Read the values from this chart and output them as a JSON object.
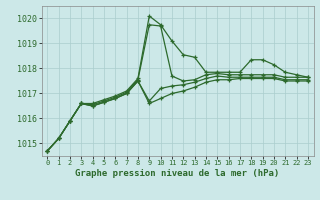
{
  "title": "Graphe pression niveau de la mer (hPa)",
  "xlabel_hours": [
    0,
    1,
    2,
    3,
    4,
    5,
    6,
    7,
    8,
    9,
    10,
    11,
    12,
    13,
    14,
    15,
    16,
    17,
    18,
    19,
    20,
    21,
    22,
    23
  ],
  "series": [
    [
      1014.7,
      1015.2,
      1015.9,
      1016.6,
      1016.6,
      1016.75,
      1016.9,
      1017.1,
      1017.6,
      1020.1,
      1019.75,
      1019.1,
      1018.55,
      1018.45,
      1017.85,
      1017.85,
      1017.85,
      1017.85,
      1018.35,
      1018.35,
      1018.15,
      1017.85,
      1017.75,
      1017.65
    ],
    [
      1014.7,
      1015.2,
      1015.9,
      1016.6,
      1016.55,
      1016.7,
      1016.85,
      1017.05,
      1017.55,
      1019.75,
      1019.7,
      1017.7,
      1017.5,
      1017.55,
      1017.75,
      1017.8,
      1017.75,
      1017.75,
      1017.75,
      1017.75,
      1017.75,
      1017.65,
      1017.65,
      1017.65
    ],
    [
      1014.7,
      1015.2,
      1015.9,
      1016.6,
      1016.5,
      1016.65,
      1016.8,
      1017.0,
      1017.5,
      1016.7,
      1017.2,
      1017.3,
      1017.35,
      1017.45,
      1017.6,
      1017.7,
      1017.65,
      1017.65,
      1017.65,
      1017.65,
      1017.65,
      1017.55,
      1017.55,
      1017.55
    ],
    [
      1014.7,
      1015.2,
      1015.9,
      1016.6,
      1016.5,
      1016.65,
      1016.8,
      1017.0,
      1017.5,
      1016.6,
      1016.8,
      1017.0,
      1017.1,
      1017.25,
      1017.45,
      1017.55,
      1017.55,
      1017.6,
      1017.6,
      1017.6,
      1017.6,
      1017.5,
      1017.5,
      1017.5
    ]
  ],
  "ylim": [
    1014.5,
    1020.5
  ],
  "yticks": [
    1015,
    1016,
    1017,
    1018,
    1019,
    1020
  ],
  "line_color": "#2d6a2d",
  "bg_color": "#cce8e8",
  "grid_color": "#aacece",
  "tick_label_color": "#2d6a2d",
  "axis_label_color": "#2d6a2d",
  "figsize": [
    3.2,
    2.0
  ],
  "dpi": 100
}
